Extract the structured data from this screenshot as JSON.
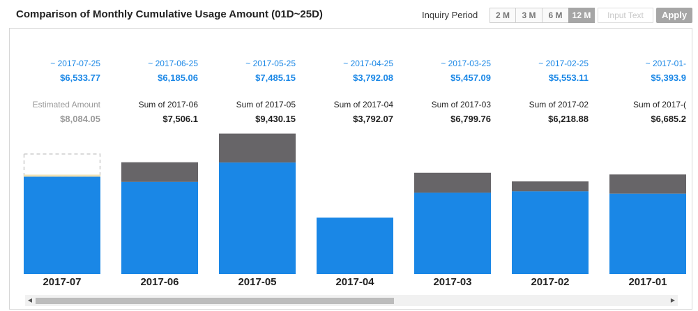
{
  "header": {
    "title": "Comparison of Monthly Cumulative Usage Amount (01D~25D)",
    "period_label": "Inquiry Period",
    "period_buttons": [
      "2 M",
      "3 M",
      "6 M",
      "12 M"
    ],
    "active_period": "12 M",
    "input_placeholder": "Input Text",
    "apply_label": "Apply"
  },
  "colors": {
    "current": "#1a87e6",
    "remainder": "#676568",
    "estimate_outline": "#cccccc",
    "estimate_band": "#f0e2b4"
  },
  "chart_data": {
    "type": "bar",
    "stacked": true,
    "categories": [
      "2017-07",
      "2017-06",
      "2017-05",
      "2017-04",
      "2017-03",
      "2017-02",
      "2017-01"
    ],
    "period_dates": [
      "~ 2017-07-25",
      "~ 2017-06-25",
      "~ 2017-05-25",
      "~ 2017-04-25",
      "~ 2017-03-25",
      "~ 2017-02-25",
      "~ 2017-01-"
    ],
    "cumulative_labels": [
      "$6,533.77",
      "$6,185.06",
      "$7,485.15",
      "$3,792.08",
      "$5,457.09",
      "$5,553.11",
      "$5,393.9"
    ],
    "cumulative_values": [
      6533.77,
      6185.06,
      7485.15,
      3792.08,
      5457.09,
      5553.11,
      5393.9
    ],
    "sum_names": [
      "Estimated Amount",
      "Sum of 2017-06",
      "Sum of 2017-05",
      "Sum of 2017-04",
      "Sum of 2017-03",
      "Sum of 2017-02",
      "Sum of 2017-("
    ],
    "sum_labels": [
      "$8,084.05",
      "$7,506.1",
      "$9,430.15",
      "$3,792.07",
      "$6,799.76",
      "$6,218.88",
      "$6,685.2"
    ],
    "sum_values": [
      8084.05,
      7506.1,
      9430.15,
      3792.07,
      6799.76,
      6218.88,
      6685.2
    ],
    "estimated_index": 0,
    "ylim": [
      0,
      10000
    ]
  }
}
